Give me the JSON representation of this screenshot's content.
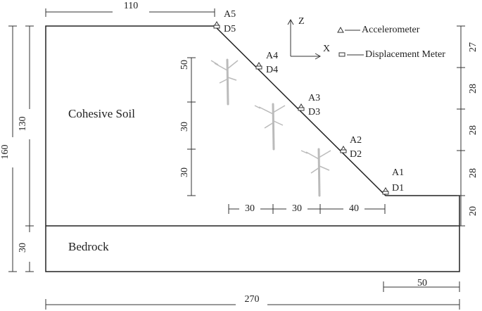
{
  "regions": {
    "soil": "Cohesive Soil",
    "bedrock": "Bedrock"
  },
  "sensors": [
    {
      "accelerometer": "A5",
      "displacement": "D5"
    },
    {
      "accelerometer": "A4",
      "displacement": "D4"
    },
    {
      "accelerometer": "A3",
      "displacement": "D3"
    },
    {
      "accelerometer": "A2",
      "displacement": "D2"
    },
    {
      "accelerometer": "A1",
      "displacement": "D1"
    }
  ],
  "axes": {
    "z": "Z",
    "x": "X"
  },
  "legend": {
    "accelerometer": "Accelerometer",
    "displacement": "Displacement Meter"
  },
  "dimensions": {
    "top": "110",
    "bottom": "270",
    "bottom_right": "50",
    "left": [
      "160",
      "130",
      "30"
    ],
    "root_depths": [
      "50",
      "30",
      "30"
    ],
    "root_spacing": [
      "30",
      "30",
      "40"
    ],
    "right": [
      "27",
      "28",
      "28",
      "28",
      "20"
    ]
  }
}
